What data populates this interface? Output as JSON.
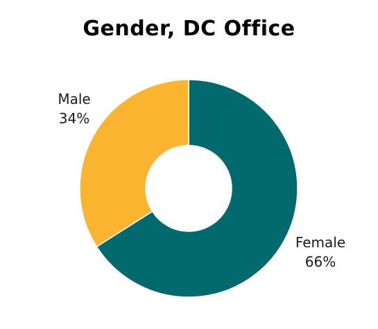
{
  "chart_data": {
    "type": "pie",
    "variant": "donut",
    "title": "Gender, DC Office",
    "slices": [
      {
        "label": "Female",
        "percent_label": "66%",
        "value": 66,
        "color": "#006a6e"
      },
      {
        "label": "Male",
        "percent_label": "34%",
        "value": 34,
        "color": "#fbb430"
      }
    ],
    "legend": "none"
  }
}
